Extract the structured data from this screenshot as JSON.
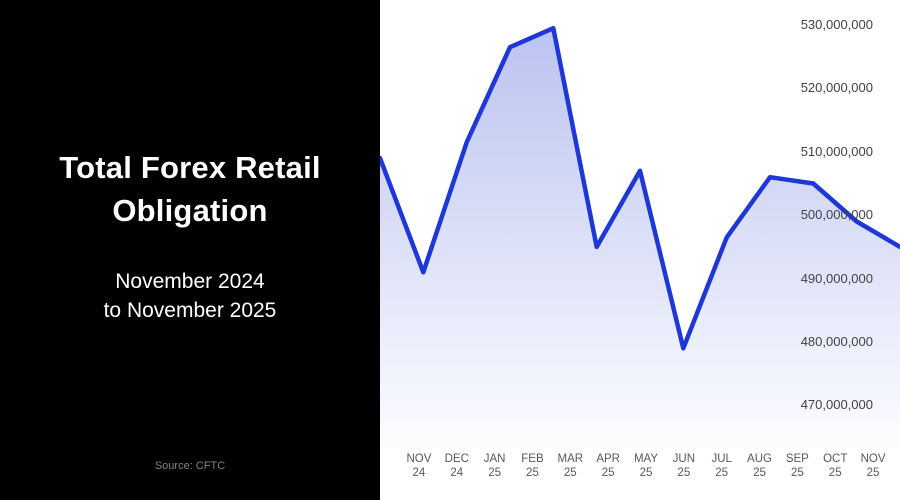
{
  "panel": {
    "title_line1": "Total Forex Retail",
    "title_line2": "Obligation",
    "subtitle_line1": "November 2024",
    "subtitle_line2": "to November 2025",
    "source": "Source: CFTC"
  },
  "colors": {
    "panel_bg": "#000000",
    "chart_bg": "#ffffff",
    "line": "#1e37d7",
    "fill_top": "#b6bfef",
    "fill_bottom": "#fdfdff",
    "y_label": "#404248",
    "x_label": "#55585e",
    "source_text": "#818387"
  },
  "chart_data": {
    "type": "area",
    "title": "Total Forex Retail Obligation",
    "subtitle": "November 2024 to November 2025",
    "source": "CFTC",
    "categories": [
      "NOV 24",
      "DEC 24",
      "JAN 25",
      "FEB 25",
      "MAR 25",
      "APR 25",
      "MAY 25",
      "JUN 25",
      "JUL 25",
      "AUG 25",
      "SEP 25",
      "OCT 25",
      "NOV 25"
    ],
    "values": [
      509000000,
      491000000,
      511500000,
      526500000,
      529500000,
      495000000,
      507000000,
      479000000,
      496500000,
      506000000,
      505000000,
      499000000,
      495000000
    ],
    "y_ticks": [
      530000000,
      520000000,
      510000000,
      500000000,
      490000000,
      480000000,
      470000000
    ],
    "ylim": [
      463300000,
      533900000
    ],
    "xlabel": "",
    "ylabel": "",
    "grid": false,
    "legend": false
  }
}
